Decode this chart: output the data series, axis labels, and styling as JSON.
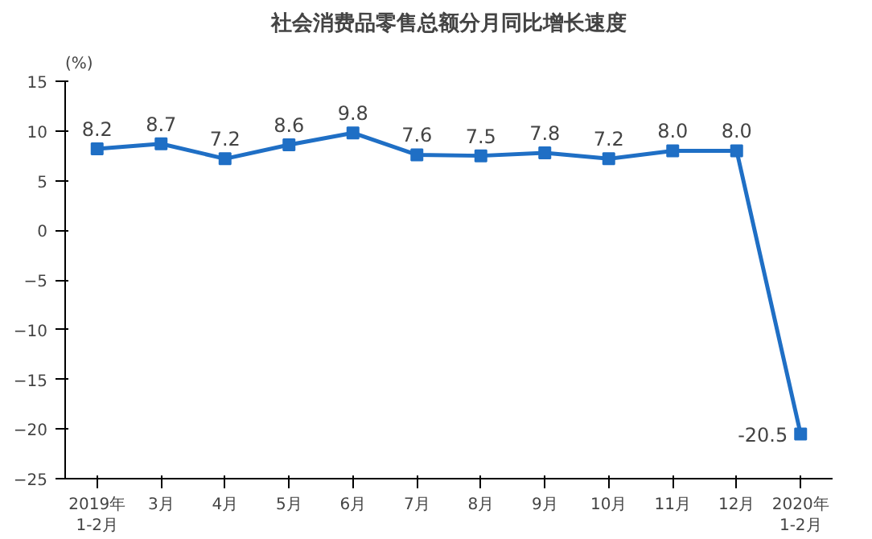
{
  "chart_data": {
    "type": "line",
    "title": "社会消费品零售总额分月同比增长速度",
    "ylabel": "(%)",
    "categories": [
      "2019年\n1-2月",
      "3月",
      "4月",
      "5月",
      "6月",
      "7月",
      "8月",
      "9月",
      "10月",
      "11月",
      "12月",
      "2020年\n1-2月"
    ],
    "series": [
      {
        "color": "#1f6fc5",
        "values": [
          8.2,
          8.7,
          7.2,
          8.6,
          9.8,
          7.6,
          7.5,
          7.8,
          7.2,
          8.0,
          8.0,
          -20.5
        ],
        "value_labels": [
          "8.2",
          "8.7",
          "7.2",
          "8.6",
          "9.8",
          "7.6",
          "7.5",
          "7.8",
          "7.2",
          "8.0",
          "8.0",
          "-20.5"
        ]
      }
    ],
    "ylim": [
      -25,
      15
    ],
    "yticks": [
      -25,
      -20,
      -15,
      -10,
      -5,
      0,
      5,
      10,
      15
    ],
    "marker": "square",
    "line_style": "solid",
    "grid": false
  }
}
